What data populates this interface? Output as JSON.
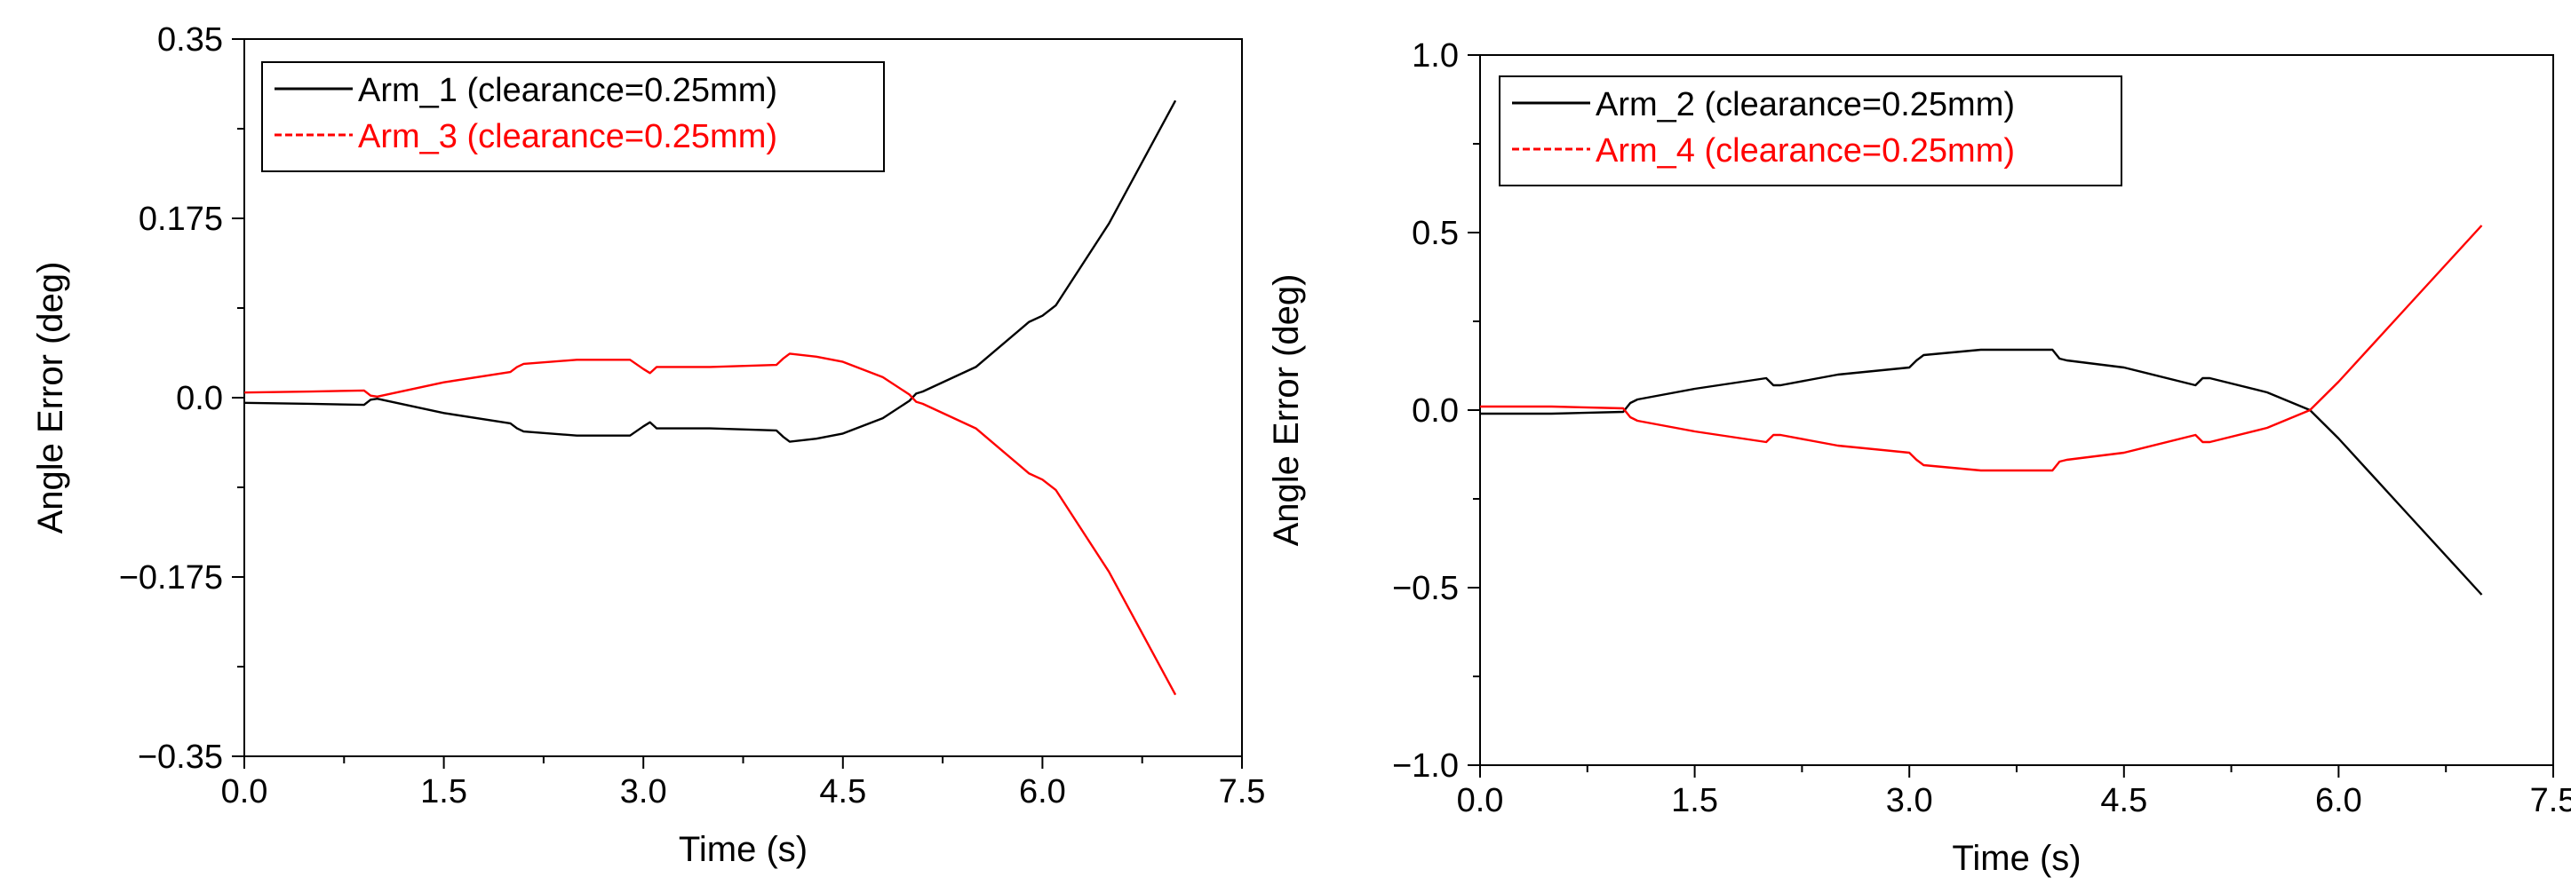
{
  "colors": {
    "black": "#000000",
    "red": "#ff0000",
    "background": "#ffffff"
  },
  "chart_data": [
    {
      "type": "line",
      "title": "",
      "xlabel": "Time (s)",
      "ylabel": "Angle Error (deg)",
      "xlim": [
        0,
        7.5
      ],
      "ylim": [
        -0.35,
        0.35
      ],
      "xticks": [
        0,
        1.5,
        3,
        4.5,
        6,
        7.5
      ],
      "xtick_labels": [
        "0.0",
        "1.5",
        "3.0",
        "4.5",
        "6.0",
        "7.5"
      ],
      "yticks": [
        0.35,
        0.175,
        0,
        -0.175,
        -0.35
      ],
      "ytick_labels": [
        "0.35",
        "0.175",
        "0.0",
        "−0.175",
        "−0.35"
      ],
      "grid": false,
      "legend_position": "top-left",
      "series": [
        {
          "name": "Arm_1 (clearance=0.25mm)",
          "color": "#000000",
          "dash": "solid",
          "x": [
            0,
            0.5,
            0.9,
            0.95,
            1.0,
            1.5,
            2.0,
            2.05,
            2.1,
            2.5,
            2.9,
            3.0,
            3.05,
            3.1,
            3.5,
            4.0,
            4.05,
            4.1,
            4.3,
            4.5,
            4.8,
            5.0,
            5.05,
            5.1,
            5.5,
            5.9,
            6.0,
            6.1,
            6.5,
            7.0
          ],
          "y": [
            -0.005,
            -0.006,
            -0.007,
            -0.002,
            -0.001,
            -0.015,
            -0.025,
            -0.03,
            -0.033,
            -0.037,
            -0.037,
            -0.028,
            -0.024,
            -0.03,
            -0.03,
            -0.032,
            -0.038,
            -0.043,
            -0.04,
            -0.035,
            -0.02,
            -0.003,
            0.004,
            0.006,
            0.03,
            0.074,
            0.08,
            0.09,
            0.17,
            0.29
          ]
        },
        {
          "name": "Arm_3 (clearance=0.25mm)",
          "color": "#ff0000",
          "dash": "dashed",
          "x": [
            0,
            0.5,
            0.9,
            0.95,
            1.0,
            1.5,
            2.0,
            2.05,
            2.1,
            2.5,
            2.9,
            3.0,
            3.05,
            3.1,
            3.5,
            4.0,
            4.05,
            4.1,
            4.3,
            4.5,
            4.8,
            5.0,
            5.05,
            5.1,
            5.5,
            5.9,
            6.0,
            6.1,
            6.5,
            7.0
          ],
          "y": [
            0.005,
            0.006,
            0.007,
            0.002,
            0.001,
            0.015,
            0.025,
            0.03,
            0.033,
            0.037,
            0.037,
            0.028,
            0.024,
            0.03,
            0.03,
            0.032,
            0.038,
            0.043,
            0.04,
            0.035,
            0.02,
            0.003,
            -0.004,
            -0.006,
            -0.03,
            -0.074,
            -0.08,
            -0.09,
            -0.17,
            -0.29
          ]
        }
      ]
    },
    {
      "type": "line",
      "title": "",
      "xlabel": "Time (s)",
      "ylabel": "Angle Error (deg)",
      "xlim": [
        0,
        7.5
      ],
      "ylim": [
        -1.0,
        1.0
      ],
      "xticks": [
        0,
        1.5,
        3,
        4.5,
        6,
        7.5
      ],
      "xtick_labels": [
        "0.0",
        "1.5",
        "3.0",
        "4.5",
        "6.0",
        "7.5"
      ],
      "yticks": [
        1.0,
        0.5,
        0,
        -0.5,
        -1.0
      ],
      "ytick_labels": [
        "1.0",
        "0.5",
        "0.0",
        "−0.5",
        "−1.0"
      ],
      "grid": false,
      "legend_position": "top-left",
      "series": [
        {
          "name": "Arm_2 (clearance=0.25mm)",
          "color": "#000000",
          "dash": "solid",
          "x": [
            0,
            0.5,
            1.0,
            1.05,
            1.1,
            1.5,
            2.0,
            2.05,
            2.1,
            2.5,
            3.0,
            3.05,
            3.1,
            3.5,
            3.8,
            4.0,
            4.05,
            4.1,
            4.5,
            5.0,
            5.05,
            5.1,
            5.5,
            5.8,
            6.0,
            6.5,
            7.0
          ],
          "y": [
            -0.01,
            -0.01,
            -0.005,
            0.02,
            0.03,
            0.06,
            0.09,
            0.07,
            0.07,
            0.1,
            0.12,
            0.14,
            0.155,
            0.17,
            0.17,
            0.17,
            0.145,
            0.14,
            0.12,
            0.07,
            0.09,
            0.09,
            0.05,
            0.0,
            -0.08,
            -0.3,
            -0.52
          ]
        },
        {
          "name": "Arm_4 (clearance=0.25mm)",
          "color": "#ff0000",
          "dash": "dashed",
          "x": [
            0,
            0.5,
            1.0,
            1.05,
            1.1,
            1.5,
            2.0,
            2.05,
            2.1,
            2.5,
            3.0,
            3.05,
            3.1,
            3.5,
            3.8,
            4.0,
            4.05,
            4.1,
            4.5,
            5.0,
            5.05,
            5.1,
            5.5,
            5.8,
            6.0,
            6.5,
            7.0
          ],
          "y": [
            0.01,
            0.01,
            0.005,
            -0.02,
            -0.03,
            -0.06,
            -0.09,
            -0.07,
            -0.07,
            -0.1,
            -0.12,
            -0.14,
            -0.155,
            -0.17,
            -0.17,
            -0.17,
            -0.145,
            -0.14,
            -0.12,
            -0.07,
            -0.09,
            -0.09,
            -0.05,
            0.0,
            0.08,
            0.3,
            0.52
          ]
        }
      ]
    }
  ]
}
